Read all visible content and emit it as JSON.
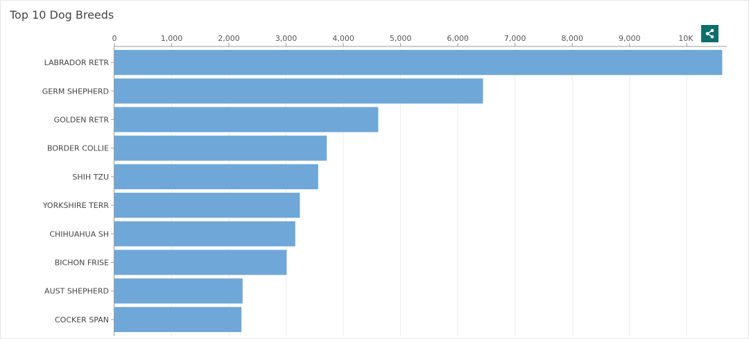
{
  "title": "Top 10 Dog Breeds",
  "share_icon": "share-icon",
  "colors": {
    "bar": "#6fa8d8",
    "grid": "#ececec",
    "axis": "#999999",
    "share_bg": "#0d6e6e"
  },
  "chart_data": {
    "type": "bar",
    "orientation": "horizontal",
    "title": "Top 10 Dog Breeds",
    "xlabel": "",
    "ylabel": "",
    "xlim": [
      0,
      10700
    ],
    "x_ticks": [
      0,
      1000,
      2000,
      3000,
      4000,
      5000,
      6000,
      7000,
      8000,
      9000,
      10000
    ],
    "x_tick_labels": [
      "0",
      "1,000",
      "2,000",
      "3,000",
      "4,000",
      "5,000",
      "6,000",
      "7,000",
      "8,000",
      "9,000",
      "10K"
    ],
    "x_axis_position": "top",
    "grid": true,
    "categories": [
      "LABRADOR RETR",
      "GERM SHEPHERD",
      "GOLDEN RETR",
      "BORDER COLLIE",
      "SHIH TZU",
      "YORKSHIRE TERR",
      "CHIHUAHUA SH",
      "BICHON FRISE",
      "AUST SHEPHERD",
      "COCKER SPAN"
    ],
    "values": [
      10620,
      6440,
      4610,
      3710,
      3560,
      3240,
      3160,
      3010,
      2240,
      2220
    ]
  }
}
